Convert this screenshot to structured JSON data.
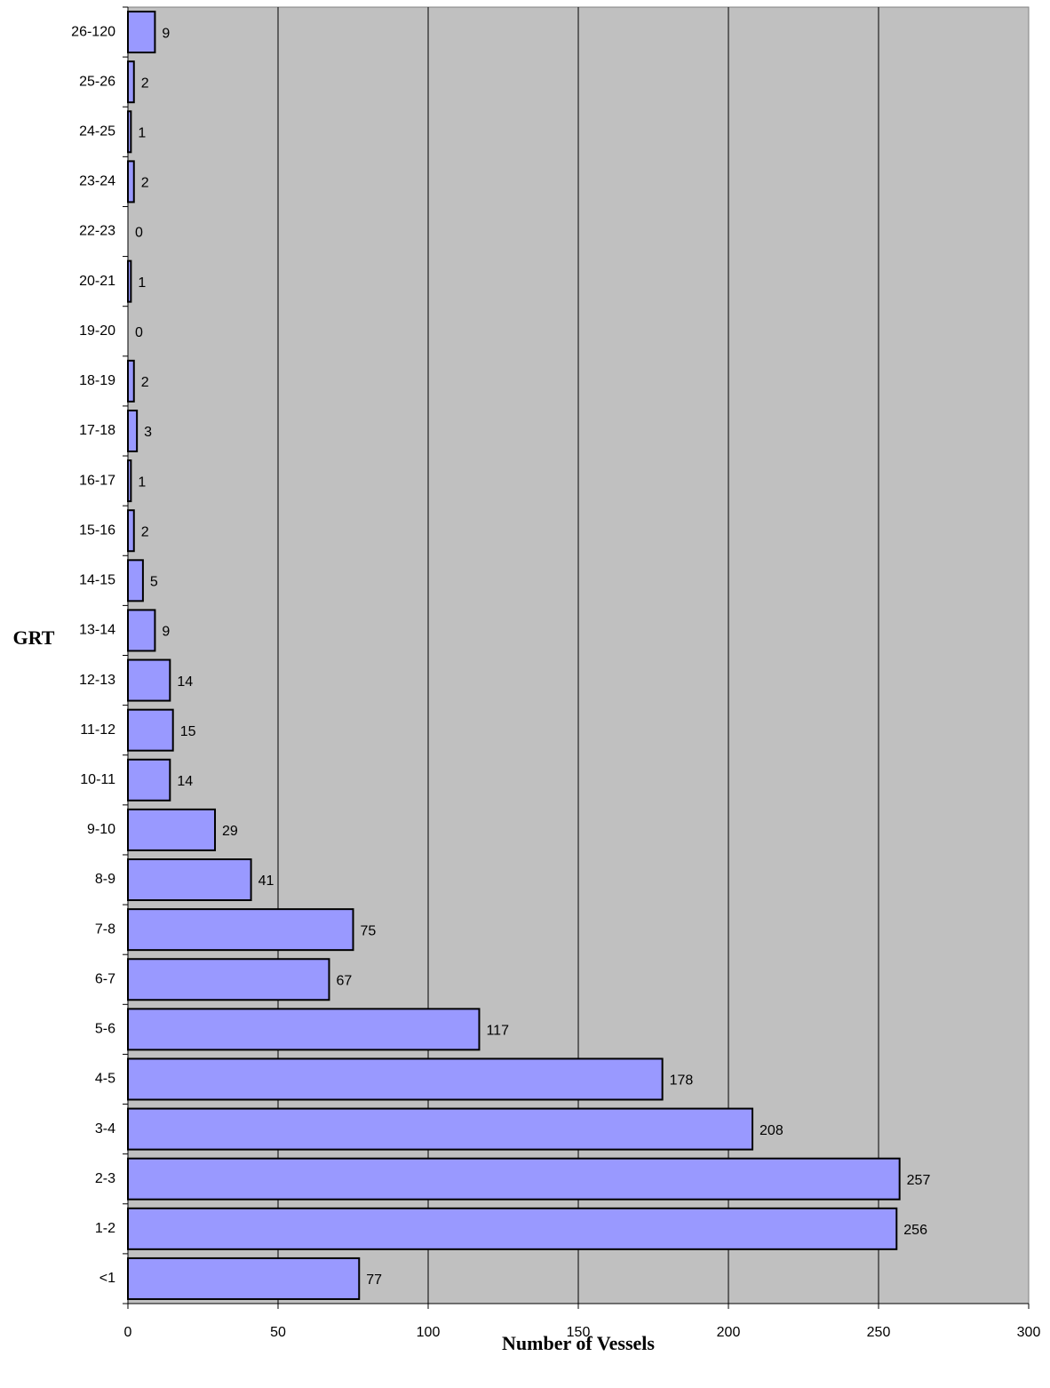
{
  "chart_data": {
    "type": "bar",
    "orientation": "horizontal",
    "xlabel": "Number of Vessels",
    "ylabel": "GRT",
    "categories": [
      "<1",
      "1-2",
      "2-3",
      "3-4",
      "4-5",
      "5-6",
      "6-7",
      "7-8",
      "8-9",
      "9-10",
      "10-11",
      "11-12",
      "12-13",
      "13-14",
      "14-15",
      "15-16",
      "16-17",
      "17-18",
      "18-19",
      "19-20",
      "20-21",
      "22-23",
      "23-24",
      "24-25",
      "25-26",
      "26-120"
    ],
    "values": [
      77,
      256,
      257,
      208,
      178,
      117,
      67,
      75,
      41,
      29,
      14,
      15,
      14,
      9,
      5,
      2,
      1,
      3,
      2,
      0,
      1,
      0,
      2,
      1,
      2,
      9
    ],
    "color": "#9999ff",
    "xlim": [
      0,
      300
    ],
    "xticks": [
      0,
      50,
      100,
      150,
      200,
      250,
      300
    ],
    "grid": true
  }
}
